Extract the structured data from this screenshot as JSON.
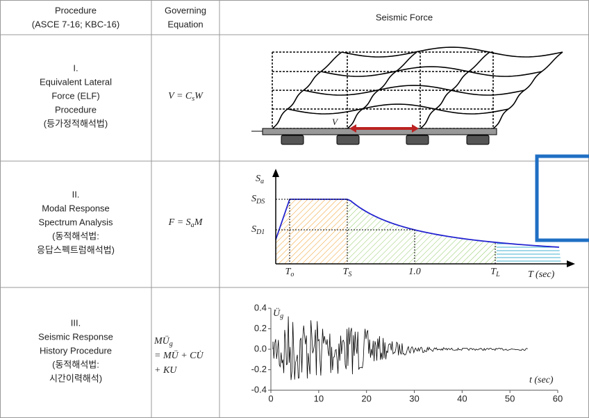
{
  "table": {
    "header": [
      [
        "Procedure",
        "(ASCE 7-16; KBC-16)"
      ],
      [
        "Governing",
        "Equation"
      ],
      [
        "Seismic Force"
      ]
    ],
    "rows": [
      {
        "procedure": [
          "I.",
          "Equivalent Lateral",
          "Force (ELF)",
          "Procedure",
          "(등가정적해석법)"
        ],
        "equation": [
          [
            {
              "t": "V = C"
            },
            {
              "sub": "s"
            },
            {
              "t": "W"
            }
          ]
        ],
        "figure": {
          "label": "V"
        }
      },
      {
        "procedure": [
          "II.",
          "Modal Response",
          "Spectrum Analysis",
          "(동적해석법:",
          "응답스펙트럼해석법)"
        ],
        "equation": [
          [
            {
              "t": "F = S"
            },
            {
              "sub": "a"
            },
            {
              "t": "M"
            }
          ]
        ],
        "figure": {
          "y_label": [
            {
              "t": "S"
            },
            {
              "sub": "a"
            }
          ],
          "levels": [
            [
              {
                "t": "S"
              },
              {
                "sub": "DS"
              }
            ],
            [
              {
                "t": "S"
              },
              {
                "sub": "D1"
              }
            ]
          ],
          "periods": [
            [
              {
                "t": "T"
              },
              {
                "sub": "o"
              }
            ],
            [
              {
                "t": "T"
              },
              {
                "sub": "S"
              }
            ],
            [
              {
                "t": "1.0"
              }
            ],
            [
              {
                "t": "T"
              },
              {
                "sub": "L"
              }
            ]
          ],
          "x_label": [
            {
              "t": "T (sec)"
            }
          ]
        }
      },
      {
        "procedure": [
          "III.",
          "Seismic Response",
          "History Procedure",
          "(동적해석법:",
          "시간이력해석)"
        ],
        "equation": [
          [
            {
              "t": "MÜ"
            },
            {
              "sub": "g"
            }
          ],
          [
            {
              "t": "= MÜ + CU̇"
            }
          ],
          [
            {
              "t": "+ KU"
            }
          ]
        ],
        "figure": {
          "y_label": [
            {
              "t": "Ü"
            },
            {
              "sub": "g"
            }
          ],
          "x_label": [
            {
              "t": "t (sec)"
            }
          ],
          "xlim": [
            0,
            60
          ],
          "ylim": [
            -0.4,
            0.4
          ],
          "xticks": [
            0,
            10,
            20,
            30,
            40,
            50,
            60
          ],
          "yticks": [
            {
              "value": 0.4,
              "label": "0.4"
            },
            {
              "value": 0.2,
              "label": "0.2"
            },
            {
              "value": 0,
              "label": "0.0"
            },
            {
              "value": -0.2,
              "label": "-0.2"
            },
            {
              "value": -0.4,
              "label": "-0.4"
            }
          ]
        }
      }
    ]
  }
}
